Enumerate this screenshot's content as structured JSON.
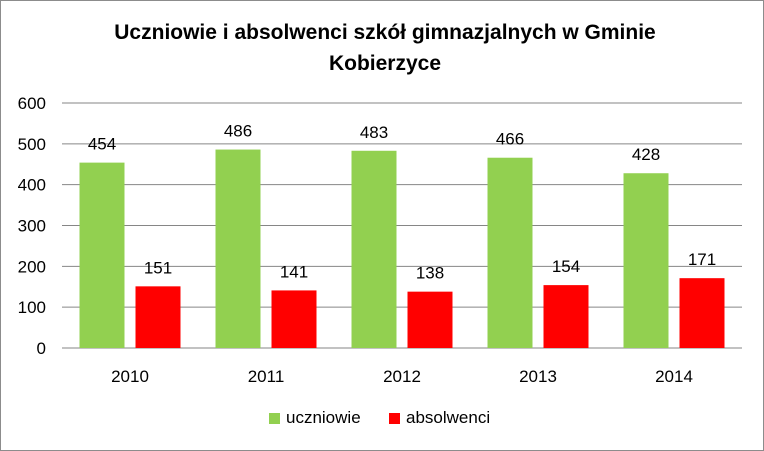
{
  "chart_data": {
    "type": "bar",
    "title_line1": "Uczniowie i absolwenci szkół gimnazjalnych w Gminie",
    "title_line2": "Kobierzyce",
    "categories": [
      "2010",
      "2011",
      "2012",
      "2013",
      "2014"
    ],
    "series": [
      {
        "name": "uczniowie",
        "color": "#92d050",
        "values": [
          454,
          486,
          483,
          466,
          428
        ]
      },
      {
        "name": "absolwenci",
        "color": "#ff0000",
        "values": [
          151,
          141,
          138,
          154,
          171
        ]
      }
    ],
    "ylim": [
      0,
      600
    ],
    "yticks": [
      "0",
      "100",
      "200",
      "300",
      "400",
      "500",
      "600"
    ],
    "grid": true,
    "legend_position": "bottom",
    "data_labels": true
  }
}
